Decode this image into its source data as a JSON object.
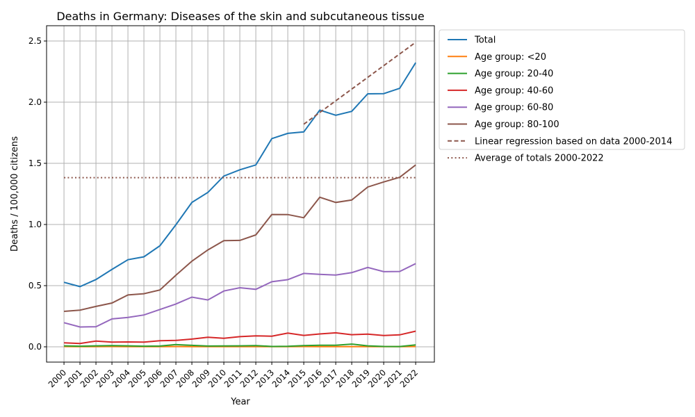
{
  "chart_data": {
    "type": "line",
    "title": "Deaths in Germany: Diseases of the skin and subcutaneous tissue",
    "xlabel": "Year",
    "ylabel": "Deaths / 100,000 citizens",
    "xlim": [
      1998.91,
      2023.17
    ],
    "ylim": [
      -0.125,
      2.625
    ],
    "yticks": [
      0.0,
      0.5,
      1.0,
      1.5,
      2.0,
      2.5
    ],
    "ytick_labels": [
      "0.0",
      "0.5",
      "1.0",
      "1.5",
      "2.0",
      "2.5"
    ],
    "x": [
      2000,
      2001,
      2002,
      2003,
      2004,
      2005,
      2006,
      2007,
      2008,
      2009,
      2010,
      2011,
      2012,
      2013,
      2014,
      2015,
      2016,
      2017,
      2018,
      2019,
      2020,
      2021,
      2022
    ],
    "xtick_labels": [
      "2000",
      "2001",
      "2002",
      "2003",
      "2004",
      "2005",
      "2006",
      "2007",
      "2008",
      "2009",
      "2010",
      "2011",
      "2012",
      "2013",
      "2014",
      "2015",
      "2016",
      "2017",
      "2018",
      "2019",
      "2020",
      "2021",
      "2022"
    ],
    "grid": true,
    "legend_placement": "outside-right-top",
    "series": [
      {
        "name": "Total",
        "color": "#1f77b4",
        "style": "solid",
        "values": [
          0.527,
          0.492,
          0.55,
          0.633,
          0.712,
          0.736,
          0.826,
          0.998,
          1.18,
          1.262,
          1.396,
          1.447,
          1.487,
          1.702,
          1.745,
          1.757,
          1.935,
          1.893,
          1.925,
          2.068,
          2.07,
          2.113,
          2.323
        ]
      },
      {
        "name": "Age group: <20",
        "color": "#ff7f0e",
        "style": "solid",
        "values": [
          0.002,
          0.001,
          0.001,
          0.002,
          0.001,
          0.001,
          0.001,
          0.002,
          0.001,
          0.001,
          0.001,
          0.001,
          0.001,
          0.001,
          0.001,
          0.002,
          0.001,
          0.001,
          0.001,
          0.001,
          0.001,
          0.001,
          0.002
        ]
      },
      {
        "name": "Age group: 20-40",
        "color": "#2ca02c",
        "style": "solid",
        "values": [
          0.008,
          0.005,
          0.008,
          0.01,
          0.008,
          0.005,
          0.006,
          0.018,
          0.012,
          0.006,
          0.007,
          0.008,
          0.01,
          0.003,
          0.004,
          0.01,
          0.013,
          0.013,
          0.022,
          0.008,
          0.003,
          0.002,
          0.016
        ]
      },
      {
        "name": "Age group: 40-60",
        "color": "#d62728",
        "style": "solid",
        "values": [
          0.033,
          0.027,
          0.047,
          0.038,
          0.04,
          0.038,
          0.05,
          0.052,
          0.063,
          0.078,
          0.07,
          0.083,
          0.09,
          0.087,
          0.112,
          0.093,
          0.105,
          0.114,
          0.099,
          0.104,
          0.092,
          0.098,
          0.128
        ]
      },
      {
        "name": "Age group: 60-80",
        "color": "#9467bd",
        "style": "solid",
        "values": [
          0.197,
          0.162,
          0.164,
          0.228,
          0.24,
          0.26,
          0.305,
          0.35,
          0.406,
          0.383,
          0.456,
          0.483,
          0.47,
          0.532,
          0.549,
          0.6,
          0.592,
          0.587,
          0.606,
          0.649,
          0.614,
          0.616,
          0.68
        ]
      },
      {
        "name": "Age group: 80-100",
        "color": "#8c564b",
        "style": "solid",
        "values": [
          0.29,
          0.3,
          0.33,
          0.358,
          0.424,
          0.434,
          0.465,
          0.585,
          0.7,
          0.792,
          0.868,
          0.87,
          0.915,
          1.082,
          1.081,
          1.055,
          1.223,
          1.18,
          1.2,
          1.306,
          1.348,
          1.386,
          1.487
        ]
      },
      {
        "name": "Linear regression based on data 2000-2014",
        "color": "#8c564b",
        "style": "dashed",
        "x": [
          2015,
          2022
        ],
        "values": [
          1.82,
          2.49
        ]
      },
      {
        "name": "Average of totals 2000-2022",
        "color": "#8c564b",
        "style": "dotted",
        "x": [
          2000,
          2022
        ],
        "values": [
          1.383,
          1.383
        ]
      }
    ]
  }
}
